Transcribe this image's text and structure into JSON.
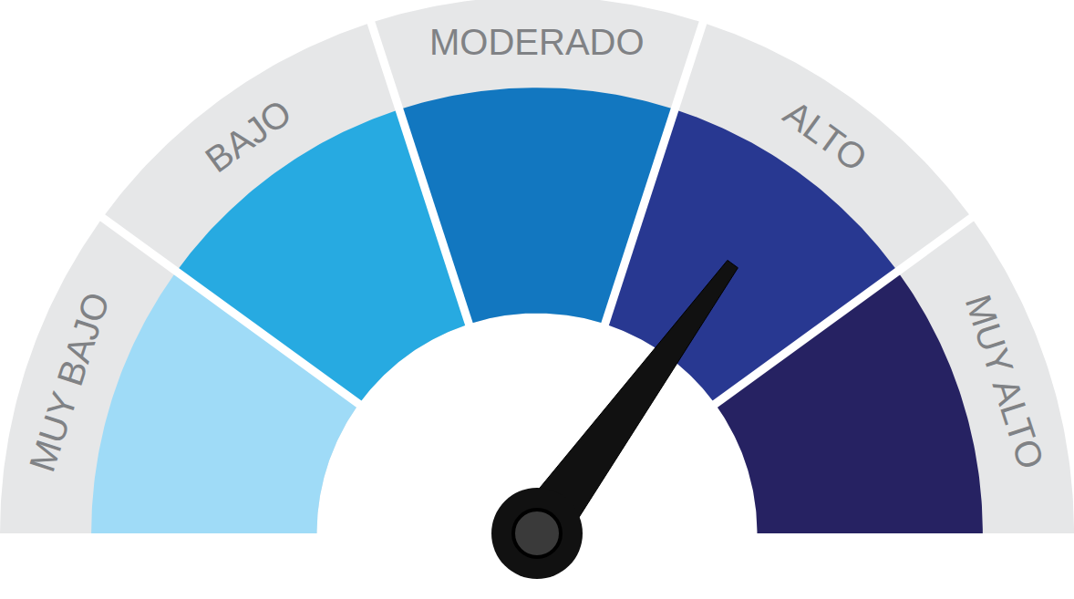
{
  "chart_data": {
    "type": "gauge",
    "categories": [
      "MUY BAJO",
      "BAJO",
      "MODERADO",
      "ALTO",
      "MUY ALTO"
    ],
    "values": [
      20,
      20,
      20,
      20,
      20
    ],
    "colors": [
      "#9fdbf7",
      "#27aae1",
      "#1277c0",
      "#283891",
      "#262262"
    ],
    "value": 70,
    "xlim": [
      0,
      100
    ]
  }
}
